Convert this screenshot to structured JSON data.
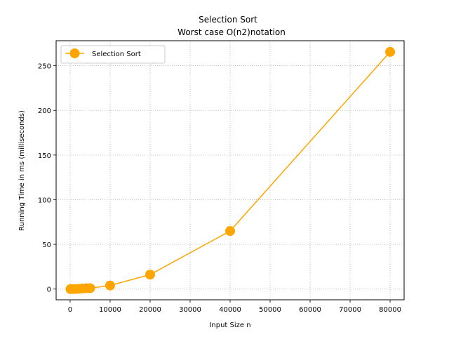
{
  "chart_data": {
    "type": "line",
    "title": "Selection Sort",
    "subtitle": "Worst case O(n2)notation",
    "xlabel": "Input Size n",
    "ylabel": "Running Time in ms (milliseconds)",
    "xlim": [
      -3500,
      83500
    ],
    "ylim": [
      -12,
      278
    ],
    "xticks": [
      0,
      10000,
      20000,
      30000,
      40000,
      50000,
      60000,
      70000,
      80000
    ],
    "yticks": [
      0,
      50,
      100,
      150,
      200,
      250
    ],
    "grid": true,
    "legend_position": "upper-left",
    "series": [
      {
        "name": "Selection Sort",
        "color": "#ffa500",
        "marker": "circle",
        "x": [
          100,
          500,
          1000,
          2000,
          3000,
          4000,
          5000,
          10000,
          20000,
          40000,
          80000
        ],
        "y": [
          0.0,
          0.02,
          0.07,
          0.27,
          0.6,
          1.0,
          1.0,
          4.0,
          16.2,
          65.0,
          265.5
        ]
      }
    ]
  }
}
